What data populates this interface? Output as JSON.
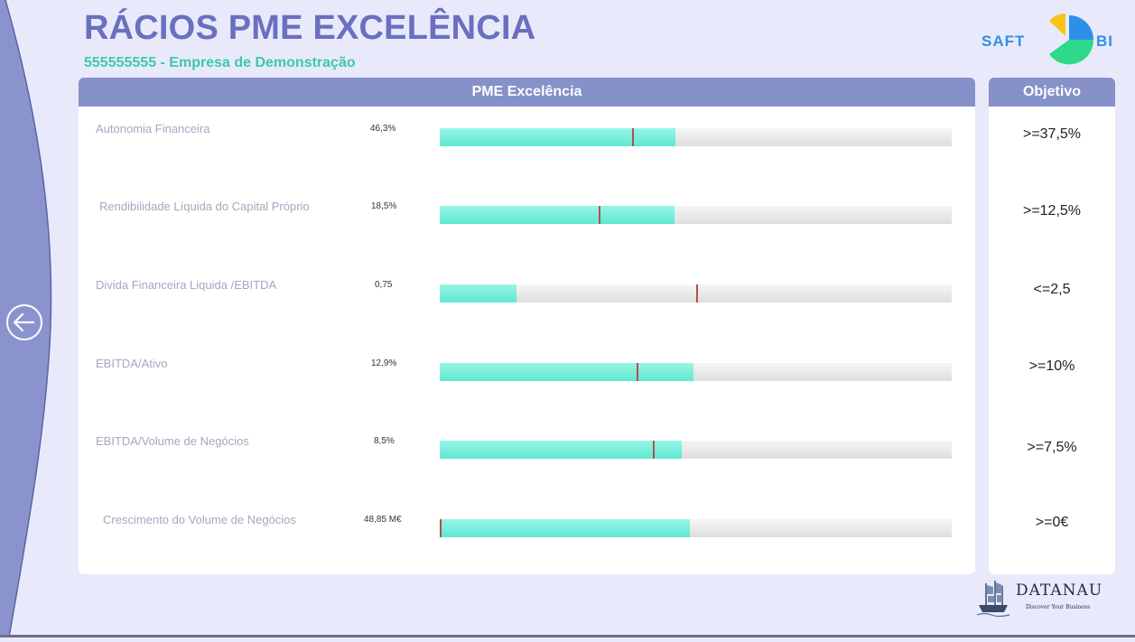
{
  "header": {
    "title": "RÁCIOS PME EXCELÊNCIA",
    "subtitle": "555555555 - Empresa de Demonstração"
  },
  "logo": {
    "saft": "SAFT",
    "bi": "BI",
    "datanau": "DATANAU",
    "datanau_tagline": "Discover Your Business"
  },
  "navigation": {
    "back_icon": "arrow-left-circle-icon"
  },
  "main": {
    "header": "PME Excelência",
    "ratios": [
      {
        "label": "Autonomia Financeira",
        "value": "46,3%",
        "fill": 0.46,
        "target": 0.375
      },
      {
        "label": "Rendibilidade Líquida do Capital  Próprio",
        "value": "18,5%",
        "fill": 0.458,
        "target": 0.31
      },
      {
        "label": "Divida Financeira Liquida /EBITDA",
        "value": "0,75",
        "fill": 0.15,
        "target": 0.5
      },
      {
        "label": "EBITDA/Ativo",
        "value": "12,9%",
        "fill": 0.496,
        "target": 0.384
      },
      {
        "label": "EBITDA/Volume de Negócios",
        "value": "8,5%",
        "fill": 0.472,
        "target": 0.416
      },
      {
        "label": "Crescimento do Volume de Negócios",
        "value": "48,85 M€",
        "fill": 0.488,
        "target": 0.0
      }
    ]
  },
  "objective": {
    "header": "Objetivo",
    "values": [
      ">=37,5%",
      ">=12,5%",
      "<=2,5",
      ">=10%",
      ">=7,5%",
      ">=0€"
    ]
  },
  "colors": {
    "title": "#6a70bf",
    "subtitle": "#3cc9a8",
    "header_bg": "#8690c9",
    "bar_fill": "#5fe8d2",
    "target_marker": "#b0524f",
    "sidebar": "#8b93cf"
  }
}
